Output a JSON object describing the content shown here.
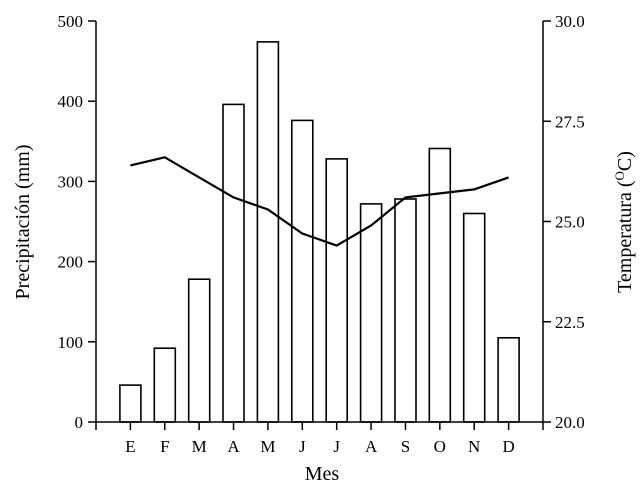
{
  "chart_data": {
    "type": "bar",
    "categories": [
      "E",
      "F",
      "M",
      "A",
      "M",
      "J",
      "J",
      "A",
      "S",
      "O",
      "N",
      "D"
    ],
    "series": [
      {
        "type": "bar",
        "axis": "left",
        "values": [
          46,
          92,
          178,
          396,
          474,
          376,
          328,
          272,
          278,
          341,
          260,
          105
        ]
      },
      {
        "type": "line",
        "axis": "right",
        "values": [
          26.4,
          26.6,
          26.1,
          25.6,
          25.3,
          24.7,
          24.4,
          24.9,
          25.6,
          25.7,
          25.8,
          26.1
        ]
      }
    ],
    "xlabel": "Mes",
    "ylabel": "Precipitación (mm)",
    "y2label_prefix": "Temperatura (",
    "y2label_sup": "O",
    "y2label_suffix": "C)",
    "ylim": [
      0,
      500
    ],
    "y2lim": [
      20.0,
      30.0
    ],
    "yticks": [
      "0",
      "100",
      "200",
      "300",
      "400",
      "500"
    ],
    "y2ticks": [
      "20.0",
      "22.5",
      "25.0",
      "27.5",
      "30.0"
    ],
    "grid": false,
    "colors": {
      "bar_fill": "#ffffff",
      "bar_stroke": "#000000",
      "line": "#000000"
    }
  }
}
